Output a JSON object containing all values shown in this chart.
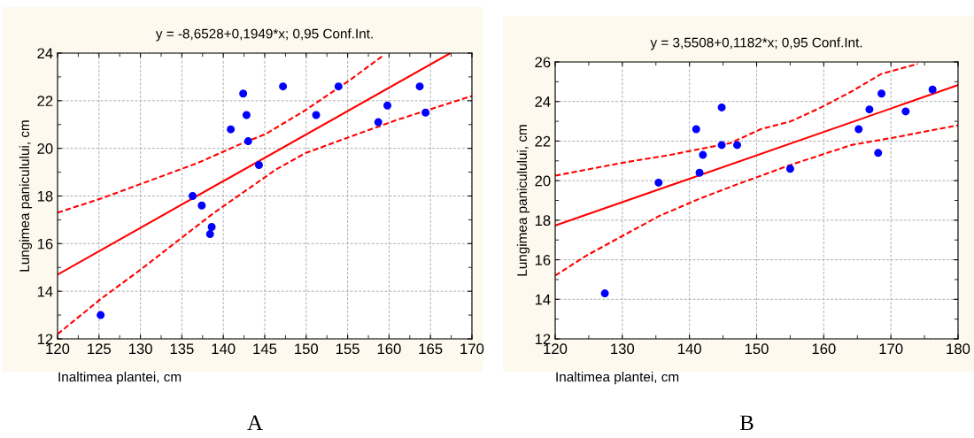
{
  "chart_data": [
    {
      "type": "scatter",
      "title": "y = -8,6528+0,1949*x; 0,95 Conf.Int.",
      "xlabel": "Inaltimea plantei, cm",
      "ylabel": "Lungimea paniculului, cm",
      "annotations": [
        "A"
      ],
      "xlim": [
        120,
        170
      ],
      "xticks": [
        120,
        125,
        130,
        135,
        140,
        145,
        150,
        155,
        160,
        165,
        170
      ],
      "ylim": [
        12,
        24
      ],
      "yticks": [
        12,
        14,
        16,
        18,
        20,
        22,
        24
      ],
      "grid": true,
      "legend": false,
      "series": [
        {
          "type": "scatter",
          "color": "#0000ff",
          "marker": "circle",
          "x": [
            125.2,
            136.3,
            137.4,
            138.4,
            138.6,
            140.9,
            142.4,
            142.8,
            143.0,
            144.3,
            147.2,
            151.2,
            153.9,
            158.7,
            159.8,
            163.7,
            164.4
          ],
          "values": [
            13.0,
            18.0,
            17.6,
            16.4,
            16.7,
            20.8,
            22.3,
            21.4,
            20.3,
            19.3,
            22.6,
            21.4,
            22.6,
            21.1,
            21.8,
            22.6,
            21.5
          ]
        },
        {
          "type": "line",
          "color": "#ff0000",
          "line_style": "solid",
          "x": [
            120,
            167.4
          ],
          "values": [
            14.7,
            24.0
          ]
        },
        {
          "type": "line",
          "color": "#ff0000",
          "line_style": "dashed",
          "x": [
            120,
            125.3,
            130,
            137,
            142.2,
            145.1,
            149.9,
            155.4,
            159.3
          ],
          "values": [
            17.3,
            17.9,
            18.5,
            19.4,
            20.2,
            20.6,
            21.6,
            22.9,
            23.9
          ]
        },
        {
          "type": "line",
          "color": "#ff0000",
          "line_style": "dashed",
          "x": [
            120,
            125.3,
            130,
            134.8,
            138.9,
            142.6,
            146.3,
            149.9,
            155.4,
            161,
            170
          ],
          "values": [
            12.2,
            13.7,
            14.9,
            16.2,
            17.3,
            18.2,
            19.1,
            19.8,
            20.5,
            21.2,
            22.2
          ]
        }
      ]
    },
    {
      "type": "scatter",
      "title": "y = 3,5508+0,1182*x; 0,95 Conf.Int.",
      "xlabel": "Inaltimea plantei, cm",
      "ylabel": "Lungimea paniculului, cm",
      "annotations": [
        "B"
      ],
      "xlim": [
        120,
        180
      ],
      "xticks": [
        120,
        130,
        140,
        150,
        160,
        170,
        180
      ],
      "ylim": [
        12,
        26
      ],
      "yticks": [
        12,
        14,
        16,
        18,
        20,
        22,
        24,
        26
      ],
      "grid": true,
      "legend": false,
      "series": [
        {
          "type": "scatter",
          "color": "#0000ff",
          "marker": "circle",
          "x": [
            127.4,
            135.4,
            141.0,
            141.5,
            142.0,
            144.8,
            144.8,
            147.1,
            155.0,
            165.2,
            166.8,
            168.1,
            168.6,
            172.2,
            176.2
          ],
          "values": [
            14.3,
            19.9,
            22.6,
            20.4,
            21.3,
            23.7,
            21.8,
            21.8,
            20.6,
            22.6,
            23.6,
            21.4,
            24.4,
            23.5,
            24.6
          ]
        },
        {
          "type": "line",
          "color": "#ff0000",
          "line_style": "solid",
          "x": [
            120,
            180
          ],
          "values": [
            17.73,
            24.83
          ]
        },
        {
          "type": "line",
          "color": "#ff0000",
          "line_style": "dashed",
          "x": [
            120,
            130,
            137.1,
            141.6,
            146.1,
            150.6,
            155.1,
            159.6,
            164.1,
            168.6,
            174
          ],
          "values": [
            20.25,
            20.9,
            21.3,
            21.6,
            21.9,
            22.6,
            23.0,
            23.7,
            24.5,
            25.4,
            25.9
          ]
        },
        {
          "type": "line",
          "color": "#ff0000",
          "line_style": "dashed",
          "x": [
            120,
            124.6,
            130,
            135.4,
            141.6,
            147,
            155.1,
            164.1,
            170.8,
            180
          ],
          "values": [
            15.2,
            16.2,
            17.2,
            18.2,
            19.1,
            19.8,
            20.8,
            21.8,
            22.2,
            22.8
          ]
        }
      ]
    }
  ]
}
